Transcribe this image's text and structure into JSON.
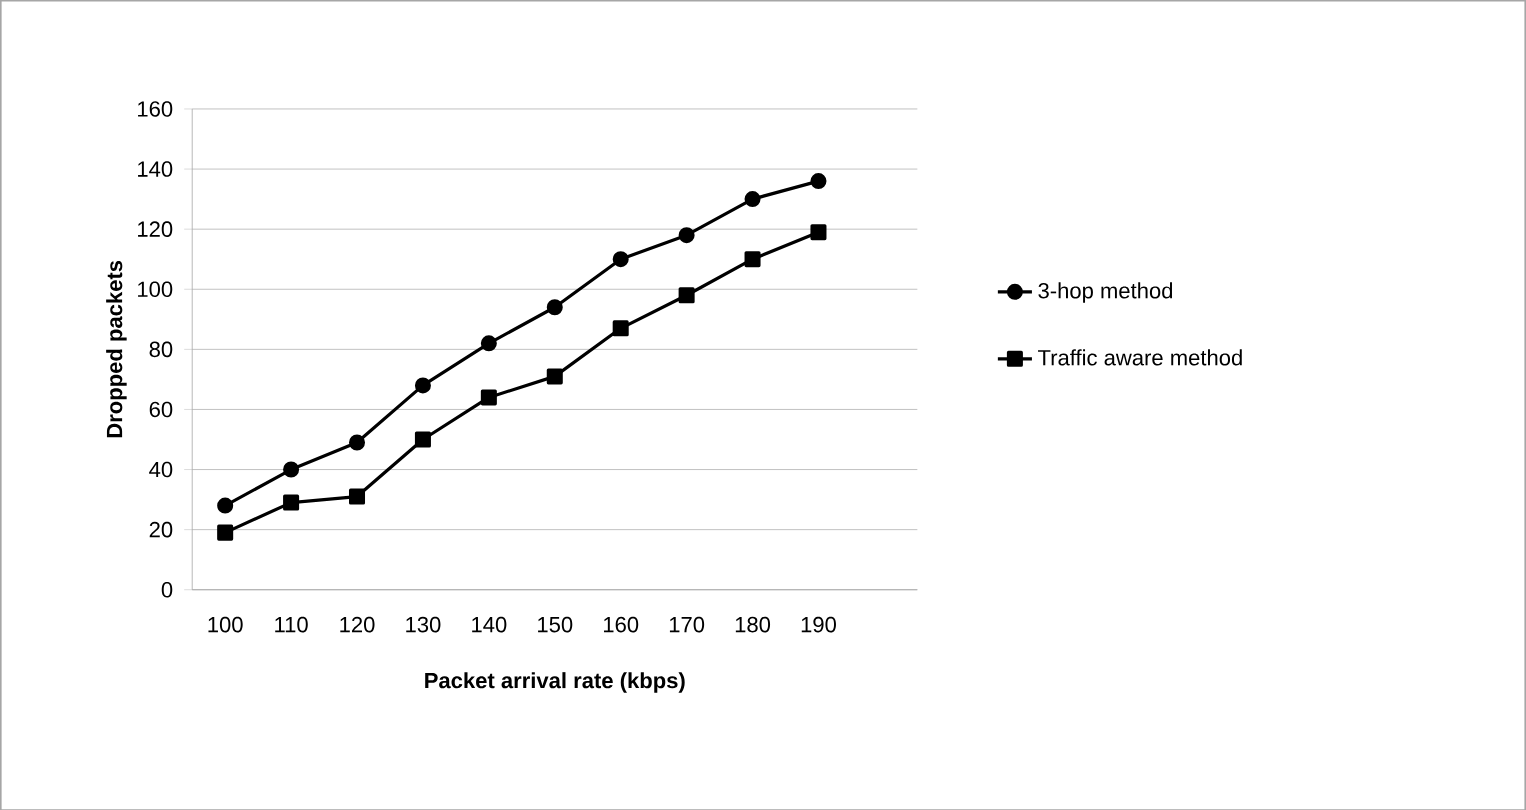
{
  "chart_data": {
    "type": "line",
    "xlabel": "Packet arrival rate (kbps)",
    "ylabel": "Dropped packets",
    "categories": [
      "100",
      "110",
      "120",
      "130",
      "140",
      "150",
      "160",
      "170",
      "180",
      "190",
      null
    ],
    "series": [
      {
        "name": "3-hop method",
        "color": "#000000",
        "marker": "circle",
        "values": [
          28,
          40,
          49,
          68,
          82,
          94,
          110,
          118,
          130,
          136,
          null
        ]
      },
      {
        "name": "Traffic aware method",
        "color": "#000000",
        "marker": "square",
        "values": [
          19,
          29,
          31,
          50,
          64,
          71,
          87,
          98,
          110,
          119,
          null
        ]
      }
    ],
    "ylim": [
      0,
      160
    ],
    "yticks": [
      0,
      20,
      40,
      60,
      80,
      100,
      120,
      140,
      160
    ],
    "grid": "y",
    "legend": "right",
    "line_style": "solid"
  }
}
